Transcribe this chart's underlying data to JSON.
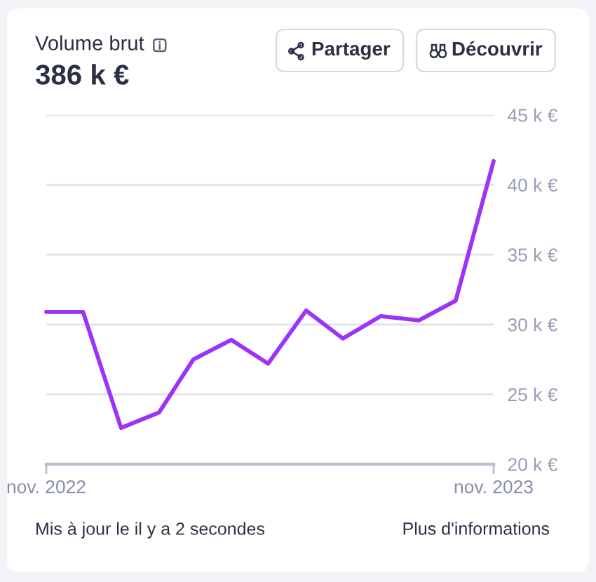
{
  "chart_data": {
    "type": "line",
    "title": "Volume brut",
    "subtitle": "386 k €",
    "x": [
      "2022-11",
      "2022-12",
      "2023-01",
      "2023-02",
      "2023-03",
      "2023-04",
      "2023-05",
      "2023-06",
      "2023-07",
      "2023-08",
      "2023-09",
      "2023-10",
      "2023-11"
    ],
    "values": [
      30.9,
      30.9,
      22.6,
      23.7,
      27.5,
      28.9,
      27.2,
      31.0,
      29.0,
      30.6,
      30.3,
      31.7,
      41.7
    ],
    "color": "#9b34f7",
    "line_style": "solid",
    "marker": "none",
    "grid": "y",
    "xlim": [
      "2022-11",
      "2023-11"
    ],
    "xticks": [
      {
        "value": "2022-11",
        "label": "nov. 2022"
      },
      {
        "value": "2023-11",
        "label": "nov. 2023"
      }
    ],
    "ylim": [
      20,
      45
    ],
    "yticks": [
      {
        "value": 20,
        "label": "20 k €"
      },
      {
        "value": 25,
        "label": "25 k €"
      },
      {
        "value": 30,
        "label": "30 k €"
      },
      {
        "value": 35,
        "label": "35 k €"
      },
      {
        "value": 40,
        "label": "40 k €"
      },
      {
        "value": 45,
        "label": "45 k €"
      }
    ],
    "annotations": [
      "Partager",
      "Découvrir",
      "Mis à jour le il y a 2 secondes",
      "Plus d'informations"
    ]
  }
}
